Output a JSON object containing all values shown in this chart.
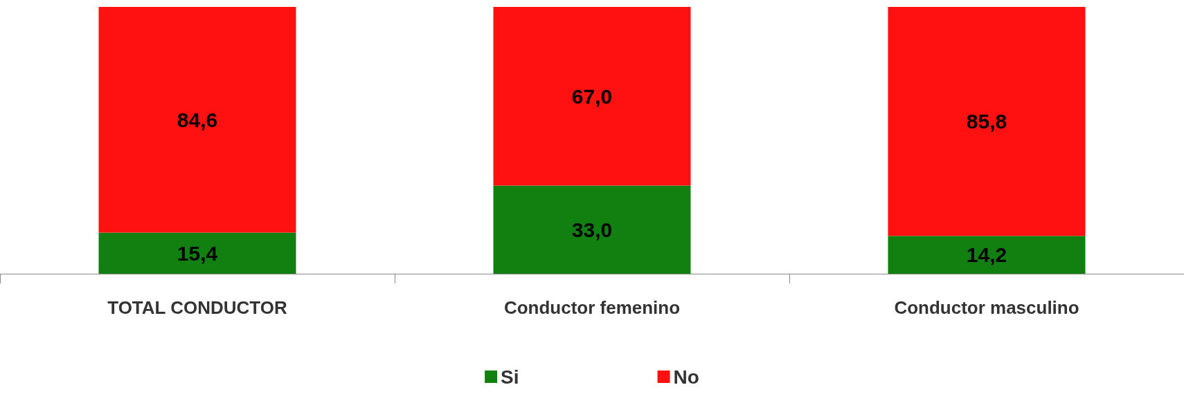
{
  "chart_data": {
    "type": "bar",
    "stacked": true,
    "categories": [
      "TOTAL CONDUCTOR",
      "Conductor femenino",
      "Conductor masculino"
    ],
    "series": [
      {
        "name": "Si",
        "color": "#118011",
        "values": [
          15.4,
          33.0,
          14.2
        ],
        "value_labels": [
          "15,4",
          "33,0",
          "14,2"
        ]
      },
      {
        "name": "No",
        "color": "#ff1111",
        "values": [
          84.6,
          67.0,
          85.8
        ],
        "value_labels": [
          "84,6",
          "67,0",
          "85,8"
        ]
      }
    ],
    "ylim": [
      0,
      100
    ],
    "legend": "bottom",
    "tick_labels": "x"
  }
}
